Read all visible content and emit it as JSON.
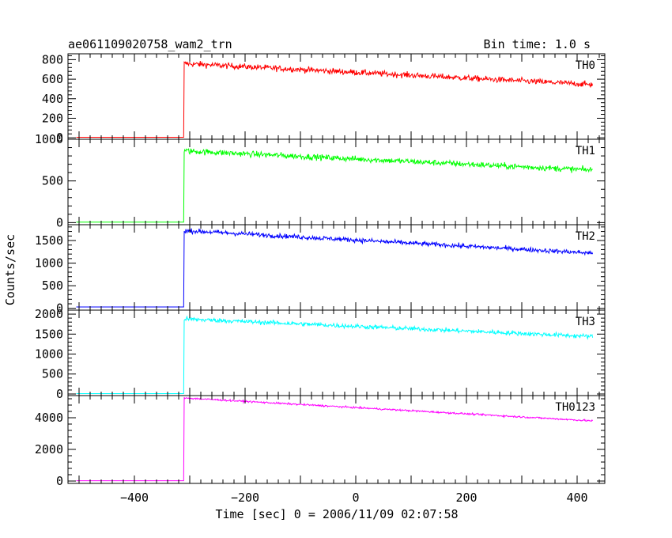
{
  "chart_data": {
    "type": "line",
    "title": "ae061109020758_wam2_trn",
    "subtitle": "Bin time: 1.0 s",
    "xlabel": "Time [sec] 0 = 2006/11/09 02:07:58",
    "ylabel": "Counts/sec",
    "xlim": [
      -520,
      450
    ],
    "x_ticks": [
      -400,
      -200,
      0,
      200,
      400
    ],
    "x_tick_labels": [
      "−400",
      "−200",
      "0",
      "200",
      "400"
    ],
    "panels": [
      {
        "name": "TH0",
        "color": "#ff0000",
        "ylim": [
          -15,
          860
        ],
        "y_ticks": [
          0,
          200,
          400,
          600,
          800
        ],
        "y_tick_labels": [
          "0",
          "200",
          "400",
          "600",
          "800"
        ],
        "pre_level": 5,
        "onset": -310,
        "peak": 760,
        "end_level": 545,
        "noise": 30
      },
      {
        "name": "TH1",
        "color": "#00ff00",
        "ylim": [
          -25,
          1000
        ],
        "y_ticks": [
          0,
          500,
          1000
        ],
        "y_tick_labels": [
          "0",
          "500",
          "1000"
        ],
        "pre_level": 5,
        "onset": -310,
        "peak": 860,
        "end_level": 630,
        "noise": 35
      },
      {
        "name": "TH2",
        "color": "#0000ff",
        "ylim": [
          -40,
          1850
        ],
        "y_ticks": [
          0,
          500,
          1000,
          1500
        ],
        "y_tick_labels": [
          "0",
          "500",
          "1000",
          "1500"
        ],
        "pre_level": 30,
        "onset": -310,
        "peak": 1720,
        "end_level": 1220,
        "noise": 50
      },
      {
        "name": "TH3",
        "color": "#00ffff",
        "ylim": [
          -40,
          2100
        ],
        "y_ticks": [
          0,
          500,
          1000,
          1500,
          2000
        ],
        "y_tick_labels": [
          "0",
          "500",
          "1000",
          "1500",
          "2000"
        ],
        "pre_level": 10,
        "onset": -310,
        "peak": 1880,
        "end_level": 1440,
        "noise": 55
      },
      {
        "name": "TH0123",
        "color": "#ff00ff",
        "ylim": [
          -150,
          5400
        ],
        "y_ticks": [
          0,
          2000,
          4000
        ],
        "y_tick_labels": [
          "0",
          "2000",
          "4000"
        ],
        "pre_level": 20,
        "onset": -310,
        "peak": 5250,
        "end_level": 3800,
        "noise": 55
      }
    ]
  }
}
